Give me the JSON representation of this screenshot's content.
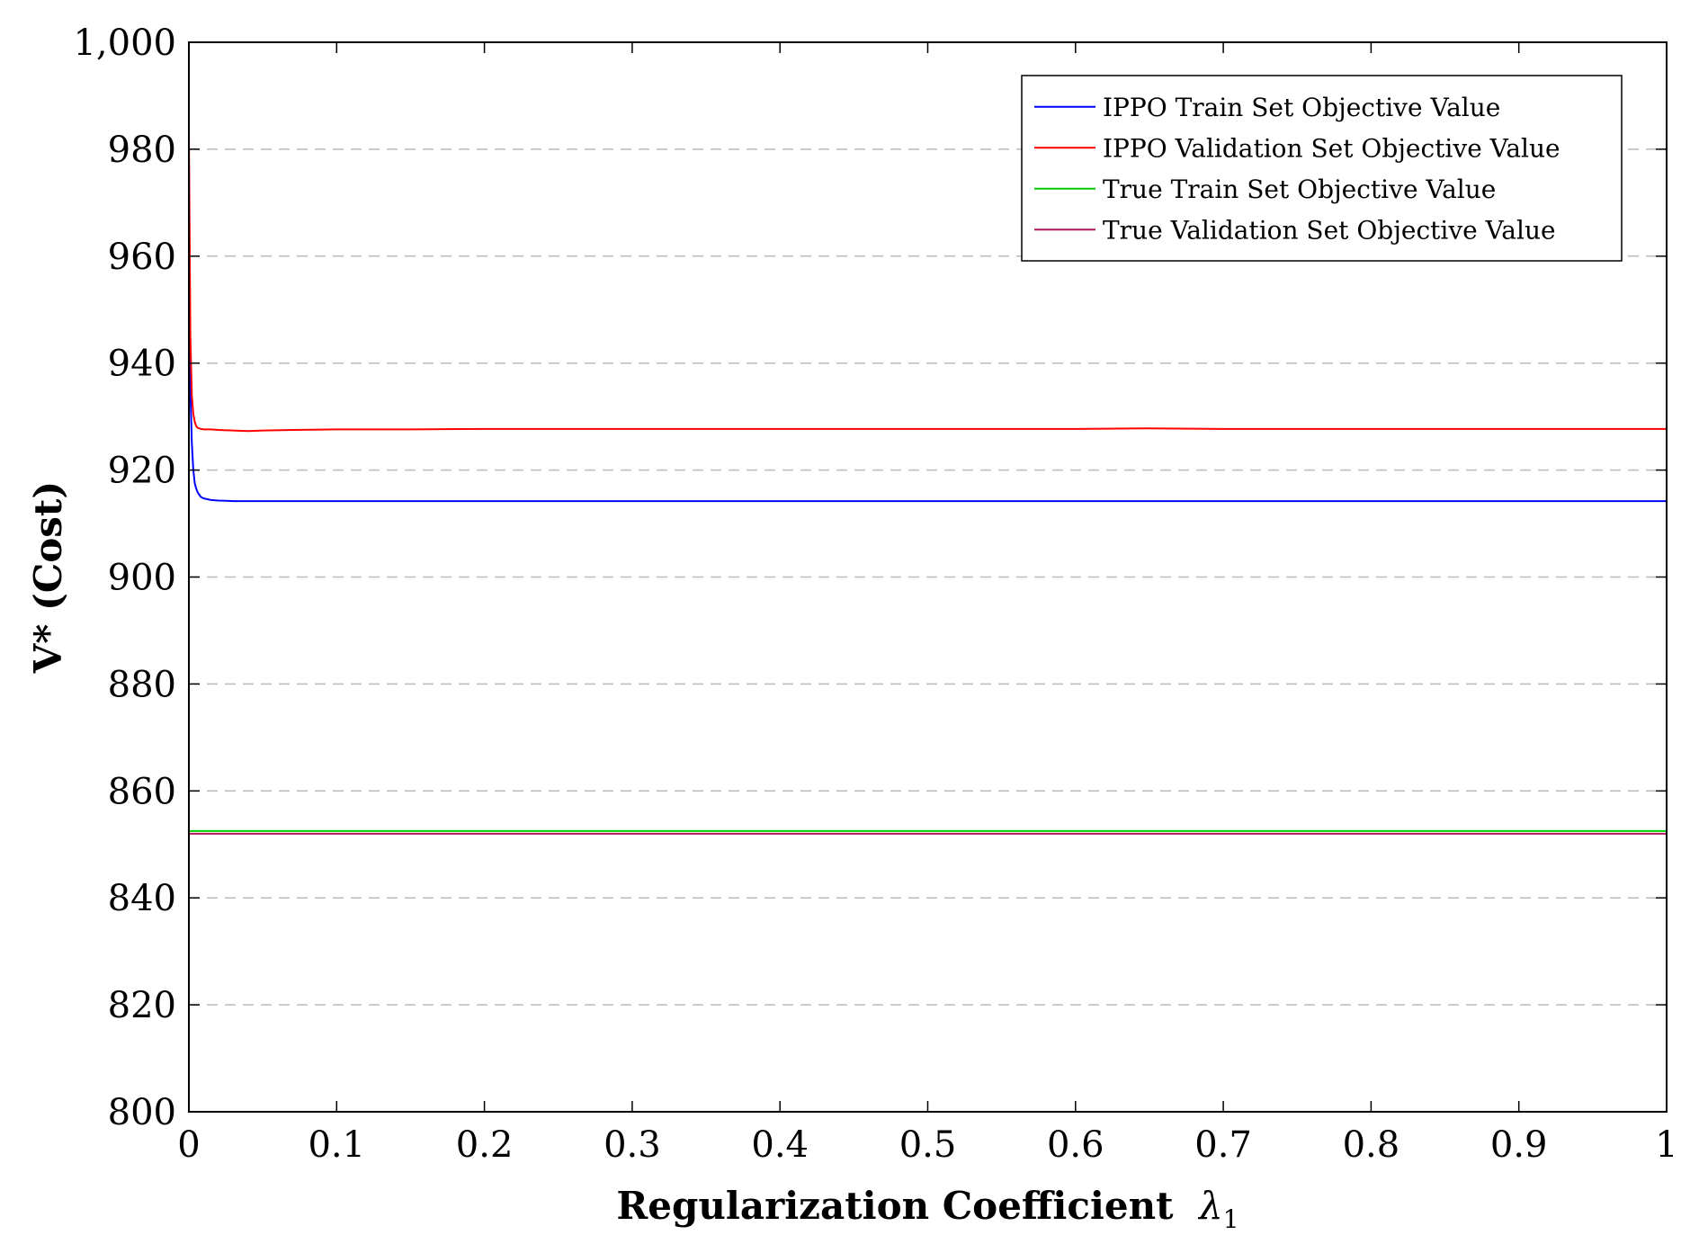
{
  "chart_data": {
    "type": "line",
    "title": "",
    "xlabel": "Regularization Coefficient",
    "xlabel_symbol": "λ",
    "xlabel_subscript": "1",
    "ylabel": "V* (Cost)",
    "xlim": [
      0,
      1
    ],
    "ylim": [
      800,
      1000
    ],
    "x_ticks": [
      0,
      0.1,
      0.2,
      0.3,
      0.4,
      0.5,
      0.6,
      0.7,
      0.8,
      0.9,
      1
    ],
    "x_tick_labels": [
      "0",
      "0.1",
      "0.2",
      "0.3",
      "0.4",
      "0.5",
      "0.6",
      "0.7",
      "0.8",
      "0.9",
      "1"
    ],
    "y_ticks": [
      800,
      820,
      840,
      860,
      880,
      900,
      920,
      940,
      960,
      980,
      1000
    ],
    "y_tick_labels": [
      "800",
      "820",
      "840",
      "860",
      "880",
      "900",
      "920",
      "940",
      "960",
      "980",
      "1,000"
    ],
    "grid": "horizontal dashed",
    "legend_position": "top-right",
    "series": [
      {
        "name": "IPPO Train Set Objective Value",
        "color": "#0000ff",
        "x": [
          0,
          0.001,
          0.002,
          0.003,
          0.004,
          0.005,
          0.006,
          0.008,
          0.01,
          0.015,
          0.02,
          0.03,
          0.05,
          0.1,
          0.2,
          0.3,
          0.4,
          0.5,
          0.6,
          0.7,
          0.8,
          0.9,
          1
        ],
        "y": [
          950,
          935,
          925,
          920,
          917.5,
          916.5,
          915.8,
          915,
          914.7,
          914.4,
          914.3,
          914.2,
          914.2,
          914.2,
          914.2,
          914.2,
          914.2,
          914.2,
          914.2,
          914.2,
          914.2,
          914.2,
          914.2
        ]
      },
      {
        "name": "IPPO Validation Set Objective Value",
        "color": "#ff0000",
        "x": [
          0,
          0.001,
          0.002,
          0.003,
          0.004,
          0.005,
          0.006,
          0.008,
          0.01,
          0.015,
          0.02,
          0.03,
          0.04,
          0.05,
          0.07,
          0.1,
          0.15,
          0.2,
          0.3,
          0.4,
          0.5,
          0.6,
          0.65,
          0.7,
          0.8,
          0.9,
          1
        ],
        "y": [
          984,
          945,
          934,
          930.5,
          929,
          928.2,
          927.9,
          927.7,
          927.6,
          927.6,
          927.5,
          927.4,
          927.3,
          927.4,
          927.5,
          927.6,
          927.6,
          927.7,
          927.7,
          927.7,
          927.7,
          927.7,
          927.8,
          927.7,
          927.7,
          927.7,
          927.7
        ]
      },
      {
        "name": "True Train Set Objective Value",
        "color": "#00cc00",
        "x": [
          0,
          1
        ],
        "y": [
          852.5,
          852.5
        ]
      },
      {
        "name": "True Validation Set Objective Value",
        "color": "#b0185a",
        "x": [
          0,
          1
        ],
        "y": [
          852.0,
          852.0
        ]
      }
    ]
  }
}
